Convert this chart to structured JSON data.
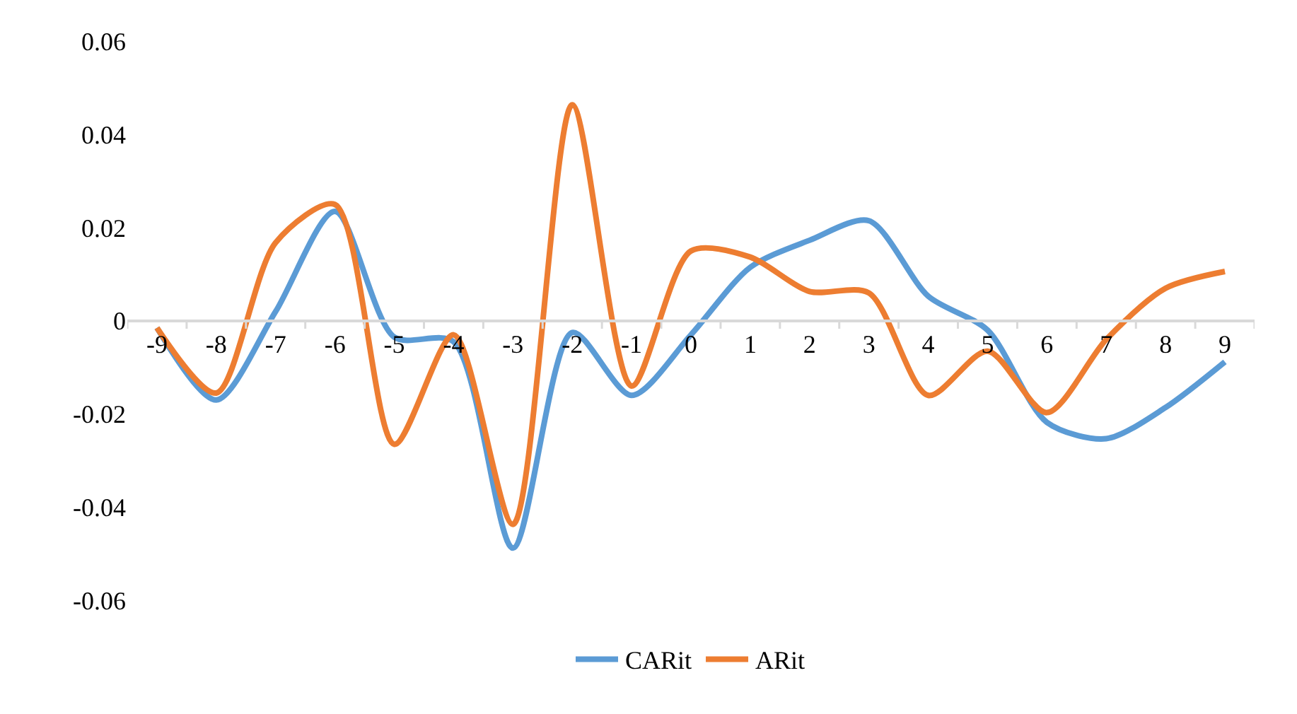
{
  "chart_data": {
    "type": "line",
    "categories": [
      "-9",
      "-8",
      "-7",
      "-6",
      "-5",
      "-4",
      "-3",
      "-2",
      "-1",
      "0",
      "1",
      "2",
      "3",
      "4",
      "5",
      "6",
      "7",
      "8",
      "9"
    ],
    "series": [
      {
        "name": "CARit",
        "color": "#5b9bd5",
        "values": [
          -0.0015,
          -0.017,
          0.002,
          0.0235,
          -0.0035,
          -0.0045,
          -0.0488,
          -0.0025,
          -0.016,
          -0.003,
          0.0115,
          0.0173,
          0.0215,
          0.0053,
          -0.002,
          -0.0218,
          -0.0253,
          -0.0186,
          -0.0088
        ]
      },
      {
        "name": "ARit",
        "color": "#ed7d31",
        "values": [
          -0.0015,
          -0.0155,
          0.0168,
          0.025,
          -0.0265,
          -0.003,
          -0.0437,
          0.0464,
          -0.014,
          0.015,
          0.0137,
          0.0063,
          0.006,
          -0.016,
          -0.0065,
          -0.0197,
          -0.004,
          0.007,
          0.0106
        ]
      }
    ],
    "ylim": [
      -0.06,
      0.06
    ],
    "yticks": [
      -0.06,
      -0.04,
      -0.02,
      0,
      0.02,
      0.04,
      0.06
    ],
    "legend": "bottom",
    "marker": "none",
    "line_style": "solid"
  }
}
